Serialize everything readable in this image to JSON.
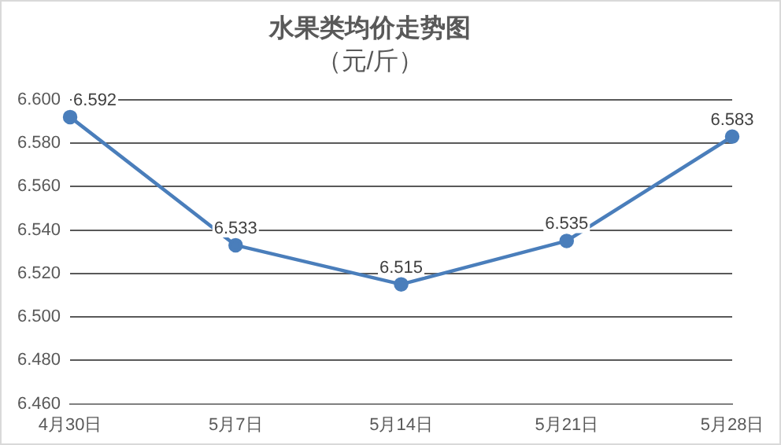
{
  "chart_data": {
    "type": "line",
    "title": "水果类均价走势图",
    "subtitle": "（元/斤）",
    "categories": [
      "4月30日",
      "5月7日",
      "5月14日",
      "5月21日",
      "5月28日"
    ],
    "series": [
      {
        "color": "#4a7ebb",
        "values": [
          6.592,
          6.533,
          6.515,
          6.535,
          6.583
        ]
      }
    ],
    "ylim": [
      6.46,
      6.6
    ],
    "yticks": [
      {
        "value": 6.46,
        "label": "6.460"
      },
      {
        "value": 6.48,
        "label": "6.480"
      },
      {
        "value": 6.5,
        "label": "6.500"
      },
      {
        "value": 6.52,
        "label": "6.520"
      },
      {
        "value": 6.54,
        "label": "6.540"
      },
      {
        "value": 6.56,
        "label": "6.560"
      },
      {
        "value": 6.58,
        "label": "6.580"
      },
      {
        "value": 6.6,
        "label": "6.600"
      }
    ],
    "grid": "y",
    "legend": false,
    "marker": "circle",
    "line_style": "solid",
    "data_labels": true
  }
}
